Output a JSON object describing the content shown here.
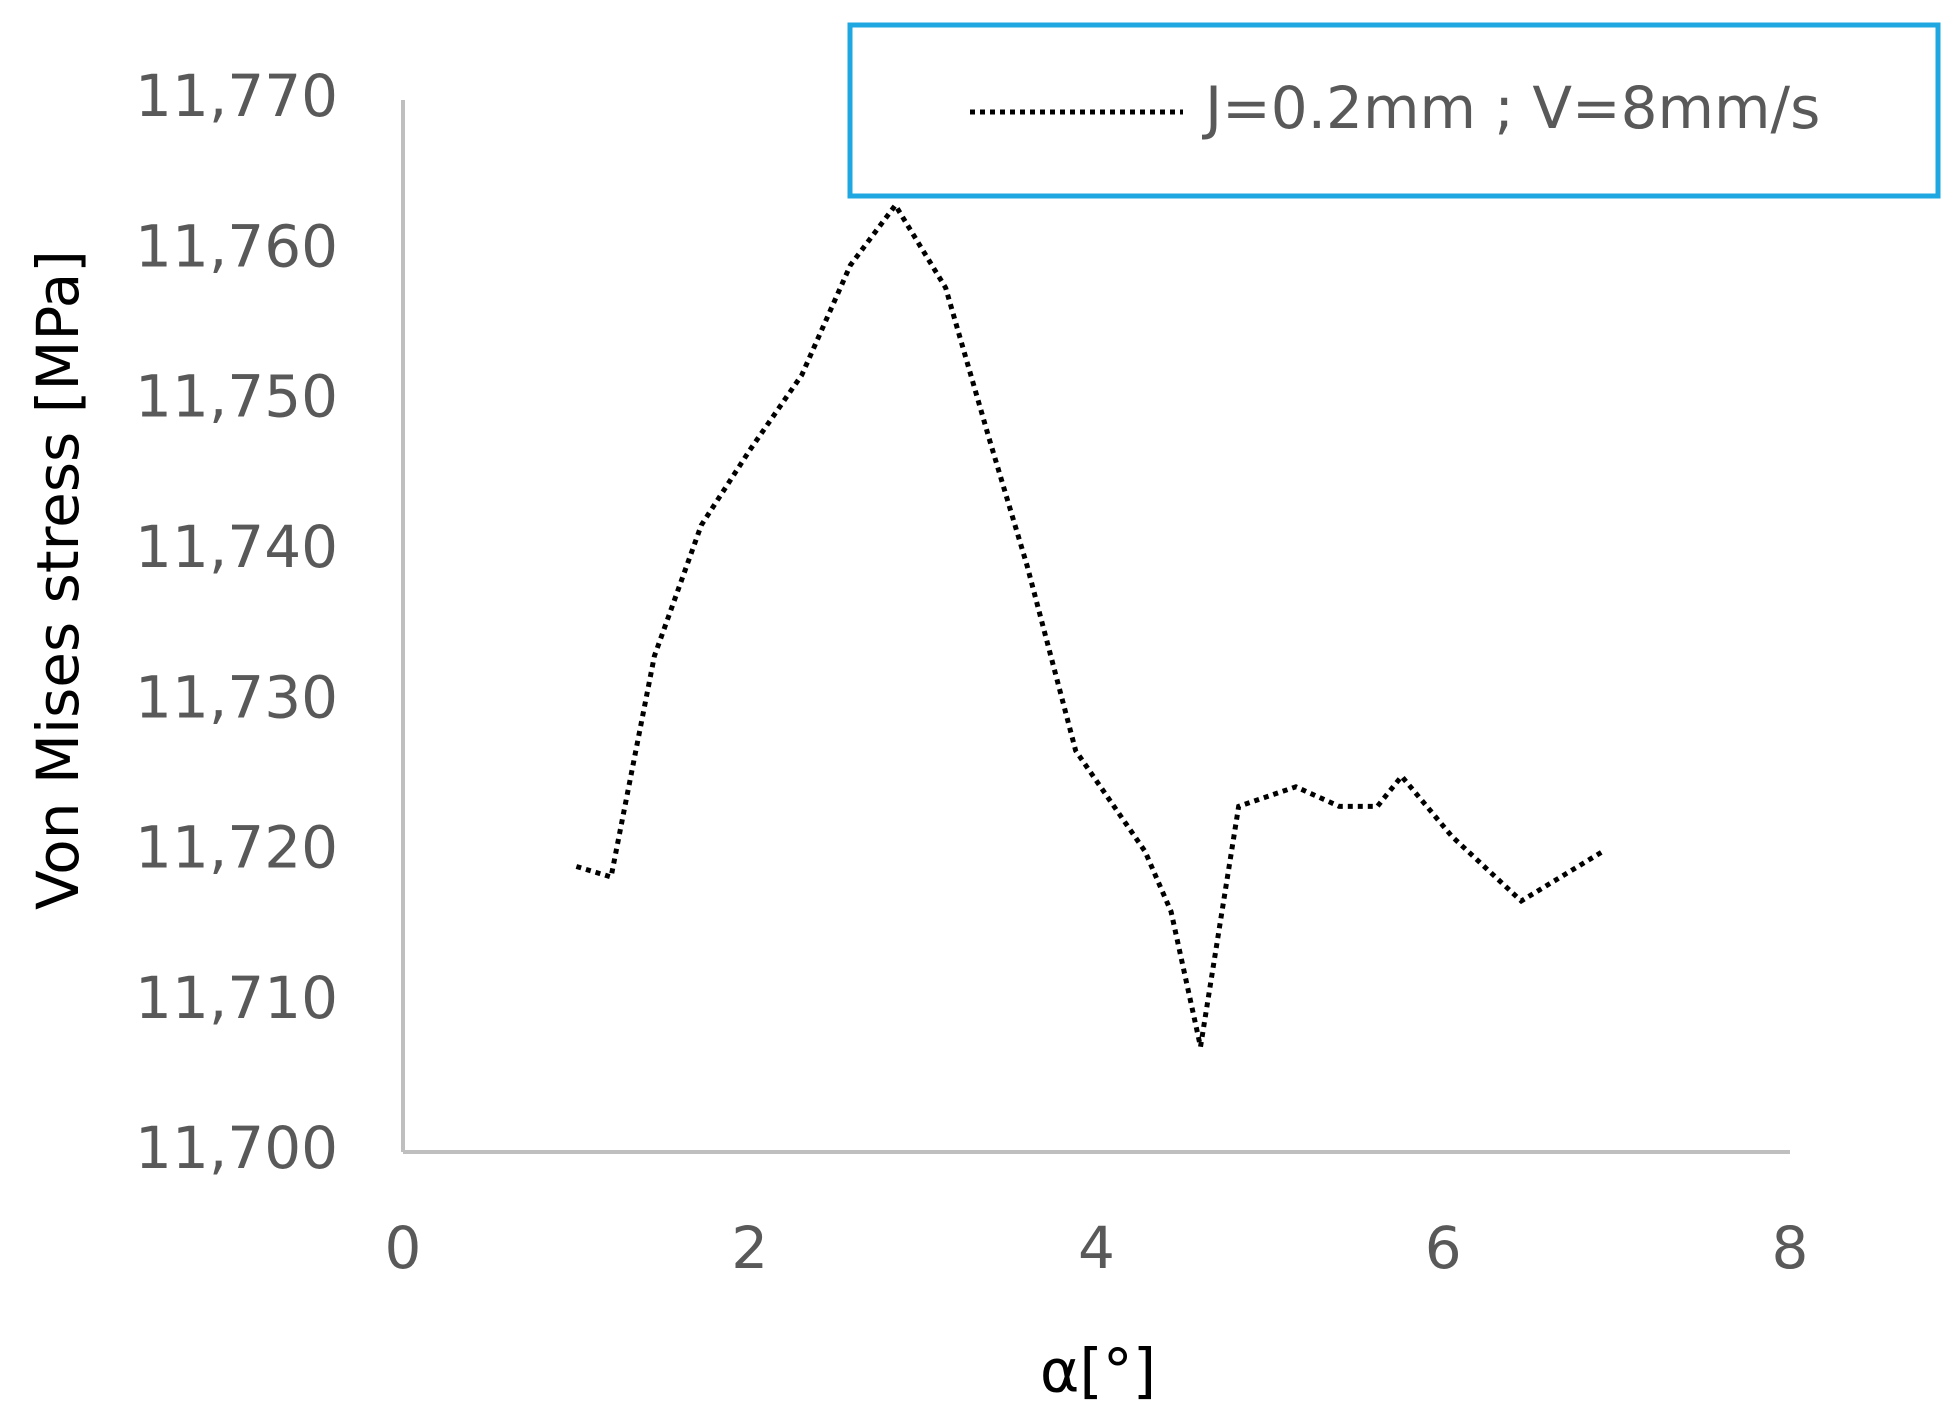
{
  "chart_data": {
    "type": "line",
    "x_label": "α[°]",
    "y_label": "Von Mises stress [MPa]",
    "xlim": [
      0,
      8
    ],
    "xticks": [
      0,
      2,
      4,
      6,
      8
    ],
    "ylim": [
      11700,
      11770
    ],
    "yticks": [
      {
        "value": 11700,
        "label": "11,700"
      },
      {
        "value": 11710,
        "label": "11,710"
      },
      {
        "value": 11720,
        "label": "11,720"
      },
      {
        "value": 11730,
        "label": "11,730"
      },
      {
        "value": 11740,
        "label": "11,740"
      },
      {
        "value": 11750,
        "label": "11,750"
      },
      {
        "value": 11760,
        "label": "11,760"
      },
      {
        "value": 11770,
        "label": "11,770"
      }
    ],
    "legend_position": "top-right",
    "legend_border_color": "#1ea7e1",
    "series": [
      {
        "name": "J=0.2mm ; V=8mm/s",
        "color": "#000000",
        "x": [
          1.0,
          1.2,
          1.45,
          1.72,
          2.0,
          2.3,
          2.58,
          2.84,
          3.13,
          3.38,
          3.6,
          3.88,
          4.28,
          4.43,
          4.6,
          4.82,
          5.15,
          5.4,
          5.62,
          5.76,
          6.05,
          6.45,
          6.92
        ],
        "values": [
          11719,
          11718.3,
          11733,
          11741.7,
          11746.7,
          11751.7,
          11759,
          11763,
          11757.5,
          11747.5,
          11739,
          11726.7,
          11720,
          11716,
          11707,
          11723,
          11724.3,
          11723,
          11723,
          11725,
          11721,
          11716.7,
          11720
        ]
      }
    ]
  }
}
